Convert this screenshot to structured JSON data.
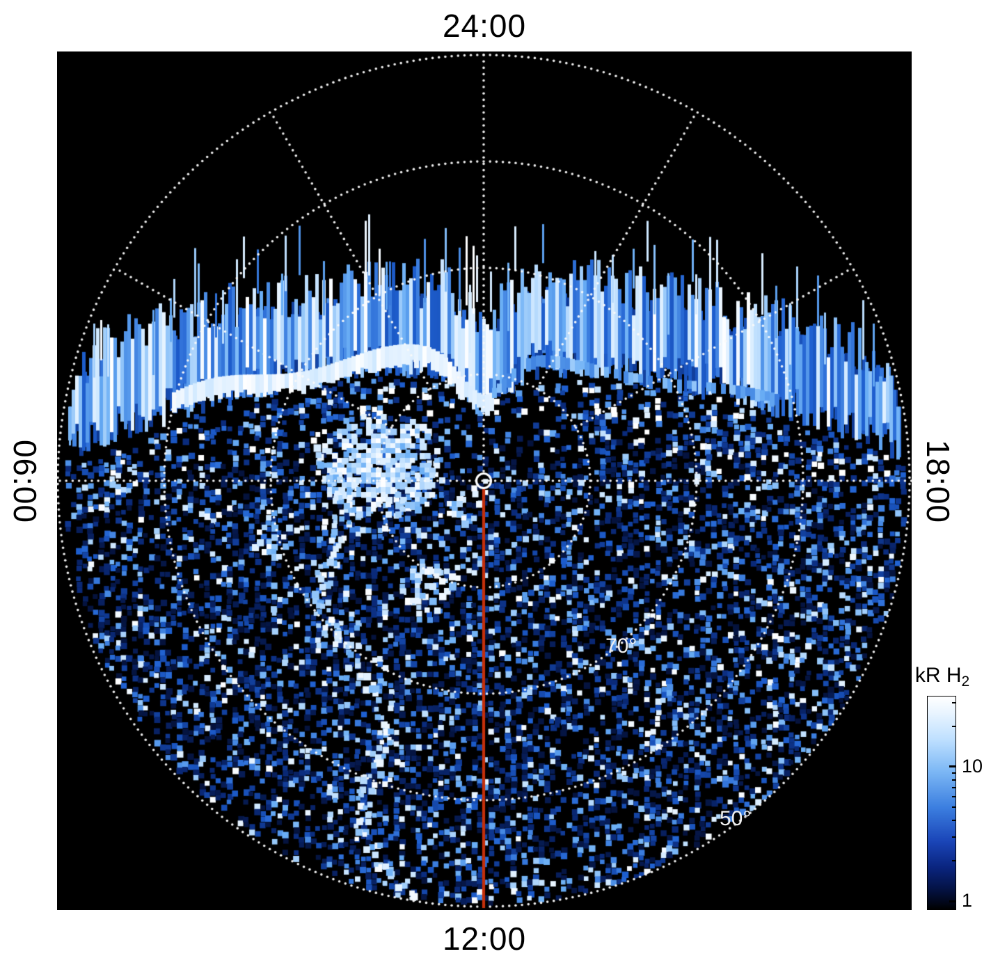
{
  "figure": {
    "background": "#ffffff",
    "panel_bg": "#000000"
  },
  "time_labels": {
    "top": "24:00",
    "bottom": "12:00",
    "left": "06:00",
    "right": "18:00"
  },
  "ring_labels": [
    {
      "text": "70°"
    },
    {
      "text": "50°"
    }
  ],
  "colorbar": {
    "title_main": "kR H",
    "title_sub": "2",
    "major_ticks": [
      {
        "label": "10",
        "frac_top": 0.33
      },
      {
        "label": "1",
        "frac_top": 0.962
      }
    ],
    "minor_ticks_frac_top": [
      0.772,
      0.66,
      0.582,
      0.52,
      0.47,
      0.428,
      0.391,
      0.359,
      0.14,
      0.029
    ],
    "gradient_stops": [
      "#ffffff 0%",
      "#e8f4ff 8%",
      "#bfe0ff 20%",
      "#7db8f5 35%",
      "#3c7fe0 52%",
      "#1a45b8 68%",
      "#0a2580 80%",
      "#041347 90%",
      "#010617 97%",
      "#000000 100%"
    ]
  },
  "chart_data": {
    "type": "heatmap",
    "projection": "polar-local-time",
    "description": "Polar projection of H2 auroral emission brightness (kR) versus local time and latitude. Speckled blue/white emission fills the dayside (lower) hemisphere of the disk over a black background; a bright striated auroral arc band crosses the upper (nightside, around 24:00) sector; a red line marks the 12:00 local-time meridian from the pole to the disk edge; dotted white grid shows latitude rings and local-time spokes.",
    "angular_tick_labels": [
      "24:00",
      "06:00",
      "12:00",
      "18:00"
    ],
    "latitude_rings_deg": [
      80,
      70,
      60,
      50
    ],
    "ring_radius_fracs": [
      0.25,
      0.5,
      0.75,
      1.0
    ],
    "labeled_rings_deg": [
      70,
      50
    ],
    "spoke_interval_hours": 2,
    "colorbar": {
      "label": "kR H2",
      "scale": "log",
      "min": 1,
      "max": 30,
      "tick_values": [
        1,
        10
      ]
    },
    "red_meridian": {
      "local_time": "12:00",
      "color": "#c42f0a"
    },
    "center_marker": {
      "shape": "circle-outline",
      "color": "#ffffff"
    },
    "grid_color": "rgba(250,250,250,0.95)",
    "palette_stops": [
      [
        0,
        "#02071e"
      ],
      [
        0.25,
        "#0a2a7a"
      ],
      [
        0.5,
        "#1e5fd0"
      ],
      [
        0.72,
        "#6aaef5"
      ],
      [
        0.88,
        "#cfe8ff"
      ],
      [
        1,
        "#ffffff"
      ]
    ],
    "noise_seed": 1337
  }
}
